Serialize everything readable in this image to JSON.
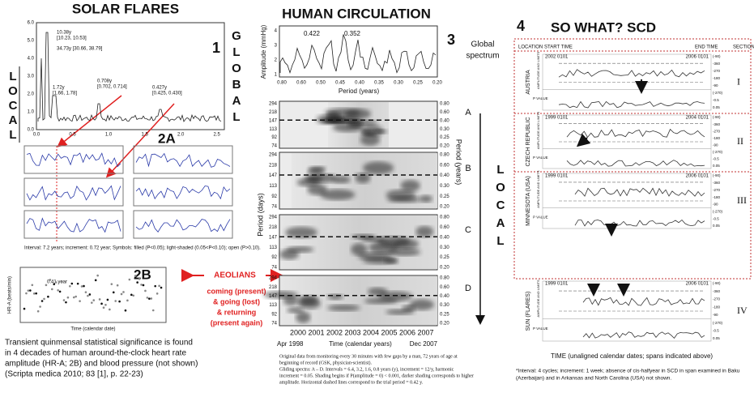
{
  "solar": {
    "title": "SOLAR FLARES",
    "panel_1": "1",
    "global_letters": [
      "G",
      "L",
      "O",
      "B",
      "A",
      "L"
    ],
    "local_letters": [
      "L",
      "O",
      "C",
      "A",
      "L"
    ],
    "yticks": [
      "0.0",
      "1.0",
      "2.0",
      "3.0",
      "4.0",
      "5.0",
      "6.0"
    ],
    "xticks": [
      "0.0",
      "0.5",
      "1.0",
      "1.5",
      "2.0",
      "2.5"
    ],
    "peaks": [
      [
        "10.38y",
        "[10.23, 10.53]"
      ],
      [
        "34.73y [30.66, 38.79]"
      ],
      [
        "1.72y",
        "[1.66, 1.78]"
      ],
      [
        "0.708y",
        "[0.702, 0.714]"
      ],
      [
        "0.427y",
        "[0.425, 0.430]"
      ]
    ],
    "panel_2a": "2A",
    "panel_2b": "2B",
    "footnote": "Interval: 7.2 years; increment: 0.72 year; Symbols: filled (P<0.05); light-shaded (0.05<P<0.10); open (P>0.10).",
    "peak_2b": "0.41 year",
    "hr_axis": "HR-A (beats/min)",
    "time_axis": "Time (calendar date)",
    "aeolians": "AEOLIANS",
    "aeolians_lines": [
      "coming (present)",
      "& going (lost)",
      "& returning",
      "(present again)"
    ],
    "paragraph": [
      "Transient quinmensal statistical significance is found",
      "in 4 decades of human around-the-clock heart rate",
      "amplitude (HR-A; 2B) and blood pressure (not shown)",
      "(Scripta medica 2010; 83 [1], p. 22-23)"
    ]
  },
  "circulation": {
    "title": "HUMAN CIRCULATION",
    "panel_3": "3",
    "global_spectrum": [
      "Global",
      "spectrum"
    ],
    "peaks": [
      "0.422",
      "0.352"
    ],
    "amplitude_axis": "Amplitude (mmHg)",
    "spectrum_yticks": [
      "1",
      "2",
      "3",
      "4"
    ],
    "spectrum_xticks": [
      "0.80",
      "0.60",
      "0.50",
      "0.45",
      "0.40",
      "0.35",
      "0.30",
      "0.25",
      "0.20"
    ],
    "period_years_axis": "Period (years)",
    "panels": [
      "A",
      "B",
      "C",
      "D"
    ],
    "left_ticks": [
      "294",
      "218",
      "147",
      "113",
      "92",
      "74"
    ],
    "right_ticks": [
      "0.80",
      "0.60",
      "0.40",
      "0.30",
      "0.25",
      "0.20"
    ],
    "period_days_axis": "Period (days)",
    "local_letters": [
      "L",
      "O",
      "C",
      "A",
      "L"
    ],
    "years": [
      "2000",
      "2001",
      "2002",
      "2003",
      "2004",
      "2005",
      "2006",
      "2007"
    ],
    "start": "Apr 1998",
    "end": "Dec 2007",
    "time_axis": "Time (calendar years)",
    "caption": [
      "Original data from monitoring every 30 minutes with few gaps by a man, 72 years of age at",
      "beginning of record (GSK, physician-scientist).",
      "Gliding spectra: A – D. Intervals = 6.4, 3.2, 1.6, 0.8 years (y), increment = 12/y, harmonic",
      "increment = 0.05. Shading begins if P(amplitude = 0) < 0.001, darker shading corresponds to higher",
      "amplitude. Horizontal dashed lines correspond to the trial period = 0.42 y."
    ]
  },
  "scd": {
    "panel_4": "4",
    "title": "SO WHAT? SCD",
    "headers": [
      "LOCATION",
      "START TIME",
      "END TIME",
      "SECTION"
    ],
    "axis_labels": [
      "AMPLITUDE AND LIMITS",
      "P VALUE"
    ],
    "ticks": [
      "(-90)",
      "-360",
      "-270",
      "-180",
      "-90",
      "(-270)",
      "-0.5",
      "0.05"
    ],
    "rows": [
      {
        "location": "AUSTRIA",
        "start": "2002 0101",
        "end": "2006 0101",
        "section": "I"
      },
      {
        "location": "CZECH REPUBLIC",
        "start": "1999 0101",
        "end": "2004 0101",
        "section": "II"
      },
      {
        "location": "MINNESOTA (USA)",
        "start": "1999 0101",
        "end": "2006 0101",
        "section": "III"
      },
      {
        "location": "SUN (FLARES)",
        "start": "1999 0101",
        "end": "2006 0101",
        "section": "IV"
      }
    ],
    "time_axis": "TIME (unaligned calendar dates; spans indicated above)",
    "footnote": [
      "*Interval: 4 cycles; increment: 1 week; absence of cis-halfyear in SCD in span examined in Baku",
      "(Azerbaijan) and in Arkansas and North Carolina (USA) not shown."
    ]
  }
}
